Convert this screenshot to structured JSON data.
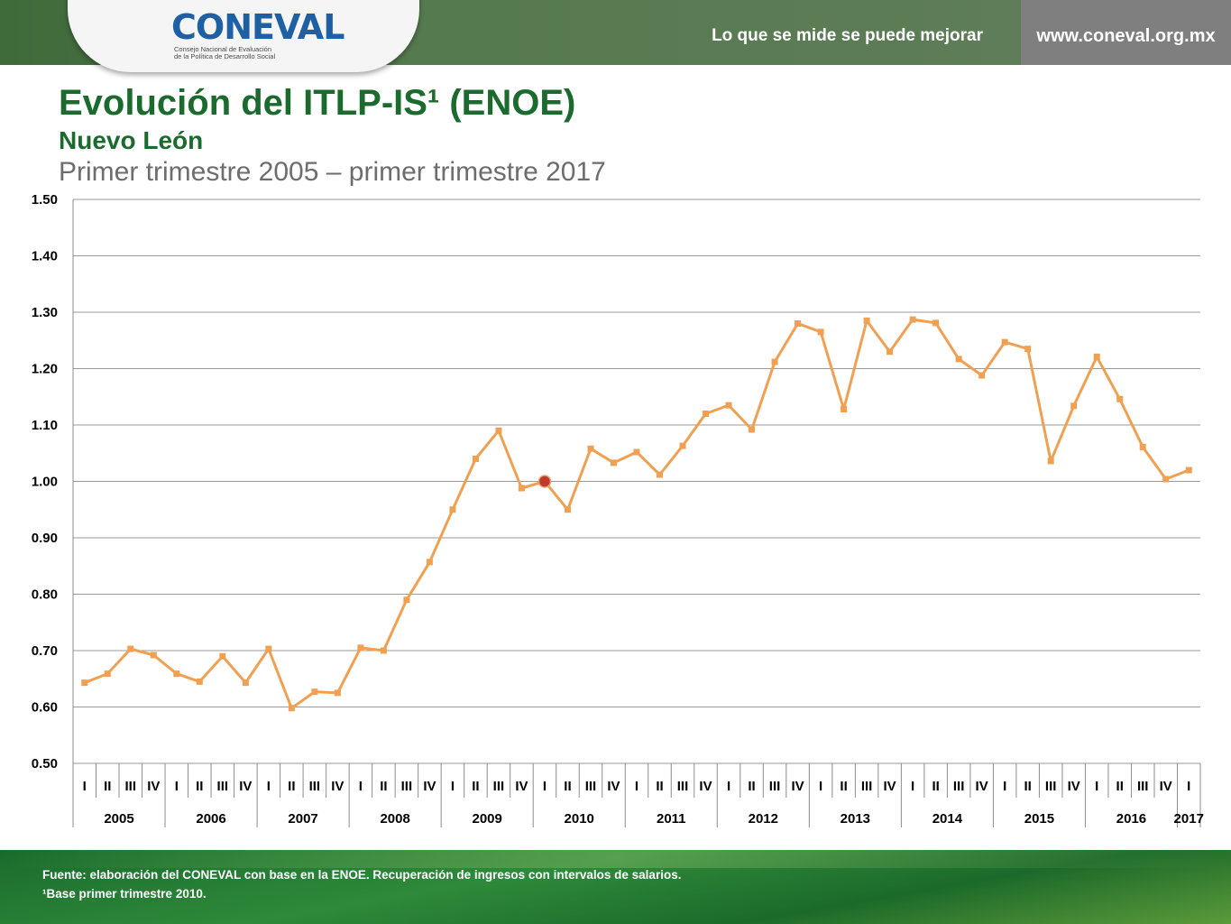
{
  "header": {
    "logo_text": "CONEVAL",
    "logo_subtitle_1": "Consejo Nacional de Evaluación",
    "logo_subtitle_2": "de la Política de Desarrollo Social",
    "slogan": "Lo que se mide se puede mejorar",
    "url": "www.coneval.org.mx"
  },
  "title": "Evolución del ITLP-IS¹ (ENOE)",
  "subtitle": "Nuevo León",
  "period": "Primer trimestre 2005 – primer trimestre 2017",
  "footer": {
    "source": "Fuente: elaboración del CONEVAL con base en la ENOE. Recuperación de ingresos con intervalos de salarios.",
    "base_note": "¹Base primer trimestre 2010."
  },
  "colors": {
    "line": "#f0a050",
    "highlight": "#c0392b",
    "title_green": "#1c6b2e",
    "grid": "#9a9a9a"
  },
  "chart_data": {
    "type": "line",
    "title": "",
    "xlabel": "",
    "ylabel": "",
    "ylim": [
      0.5,
      1.5
    ],
    "yticks": [
      "0.50",
      "0.60",
      "0.70",
      "0.80",
      "0.90",
      "1.00",
      "1.10",
      "1.20",
      "1.30",
      "1.40",
      "1.50"
    ],
    "grid": true,
    "quarters": [
      "I",
      "II",
      "III",
      "IV",
      "I",
      "II",
      "III",
      "IV",
      "I",
      "II",
      "III",
      "IV",
      "I",
      "II",
      "III",
      "IV",
      "I",
      "II",
      "III",
      "IV",
      "I",
      "II",
      "III",
      "IV",
      "I",
      "II",
      "III",
      "IV",
      "I",
      "II",
      "III",
      "IV",
      "I",
      "II",
      "III",
      "IV",
      "I",
      "II",
      "III",
      "IV",
      "I",
      "II",
      "III",
      "IV",
      "I",
      "II",
      "III",
      "IV",
      "I"
    ],
    "years": [
      "2005",
      "2006",
      "2007",
      "2008",
      "2009",
      "2010",
      "2011",
      "2012",
      "2013",
      "2014",
      "2015",
      "2016",
      "2017"
    ],
    "values": [
      0.643,
      0.659,
      0.703,
      0.692,
      0.659,
      0.645,
      0.69,
      0.643,
      0.703,
      0.598,
      0.627,
      0.625,
      0.705,
      0.7,
      0.79,
      0.857,
      0.95,
      1.04,
      1.09,
      0.988,
      1.0,
      0.95,
      1.058,
      1.033,
      1.052,
      1.012,
      1.063,
      1.12,
      1.135,
      1.092,
      1.212,
      1.28,
      1.265,
      1.128,
      1.285,
      1.23,
      1.287,
      1.281,
      1.217,
      1.188,
      1.247,
      1.235,
      1.036,
      1.134,
      1.221,
      1.146,
      1.061,
      1.004,
      1.02
    ],
    "highlight_index": 20
  }
}
